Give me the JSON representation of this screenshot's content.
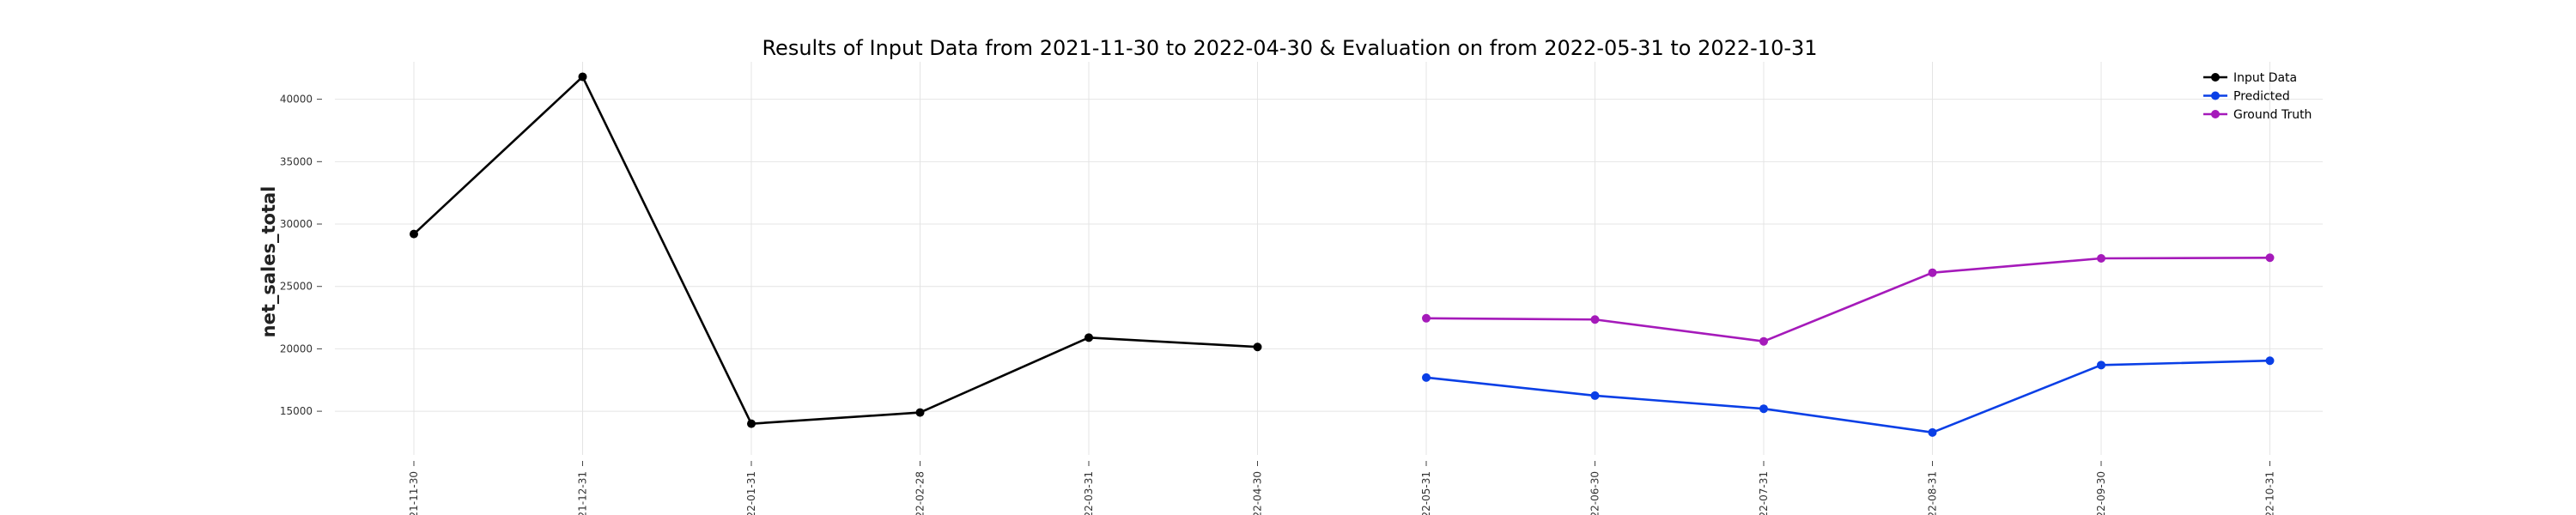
{
  "chart_data": {
    "type": "line",
    "title": "Results of Input Data from 2021-11-30 to 2022-04-30 & Evaluation on from 2022-05-31 to 2022-10-31",
    "xlabel": "",
    "ylabel": "net_sales_total",
    "ylim": [
      11500,
      43000
    ],
    "yticks": [
      15000,
      20000,
      25000,
      30000,
      35000,
      40000
    ],
    "x_tick_labels": [
      "-21-11-30",
      "-21-12-31",
      "-22-01-31",
      "-22-02-28",
      "-22-03-31",
      "-22-04-30",
      "-22-05-31",
      "-22-06-30",
      "-22-07-31",
      "-22-08-31",
      "-22-09-30",
      "-22-10-31"
    ],
    "grid": true,
    "legend_position": "top-right",
    "series": [
      {
        "name": "Input Data",
        "color": "#000000",
        "x": [
          "2021-11-30",
          "2021-12-31",
          "2022-01-31",
          "2022-02-28",
          "2022-03-31",
          "2022-04-30"
        ],
        "values": [
          29200,
          41800,
          14000,
          14900,
          20900,
          20150
        ]
      },
      {
        "name": "Predicted",
        "color": "#0a3fe6",
        "x": [
          "2022-05-31",
          "2022-06-30",
          "2022-07-31",
          "2022-08-31",
          "2022-09-30",
          "2022-10-31"
        ],
        "values": [
          17700,
          16250,
          15200,
          13300,
          18700,
          19050
        ]
      },
      {
        "name": "Ground Truth",
        "color": "#a51aba",
        "x": [
          "2022-05-31",
          "2022-06-30",
          "2022-07-31",
          "2022-08-31",
          "2022-09-30",
          "2022-10-31"
        ],
        "values": [
          22450,
          22350,
          20600,
          26100,
          27250,
          27300
        ]
      }
    ]
  }
}
